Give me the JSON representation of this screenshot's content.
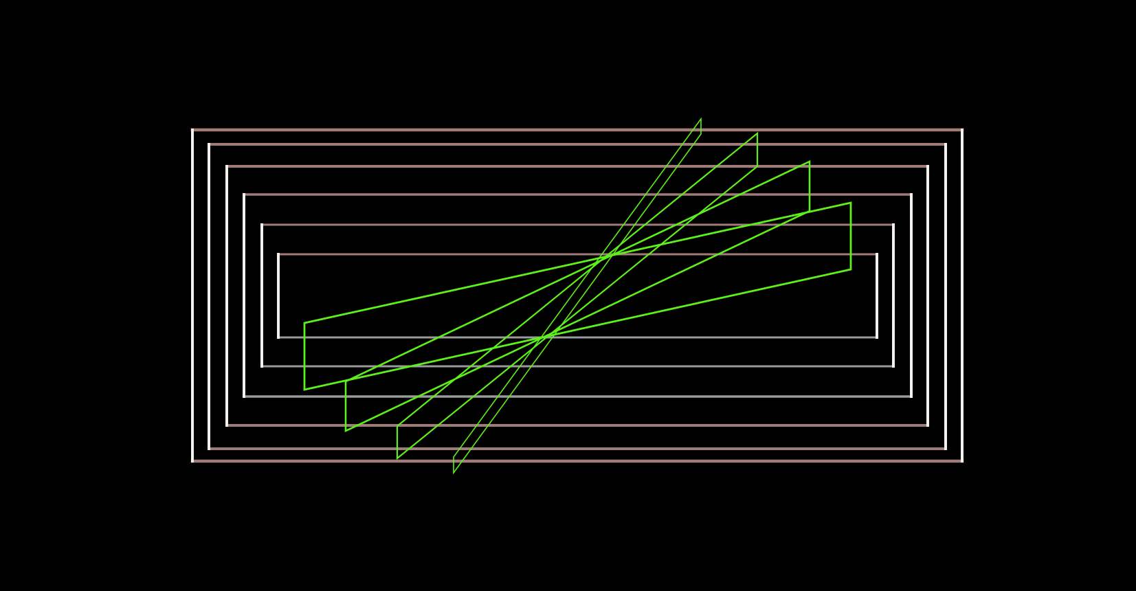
{
  "scene": {
    "background": "#000000",
    "frame_colors": {
      "top": "#a07b78",
      "side": "#f4f0ee",
      "bottom_outer": "#a07b78",
      "bottom_inner": "#9a9a9a"
    },
    "plane_color": "#5ef01a",
    "frame_count": 6,
    "plane_count": 4
  }
}
